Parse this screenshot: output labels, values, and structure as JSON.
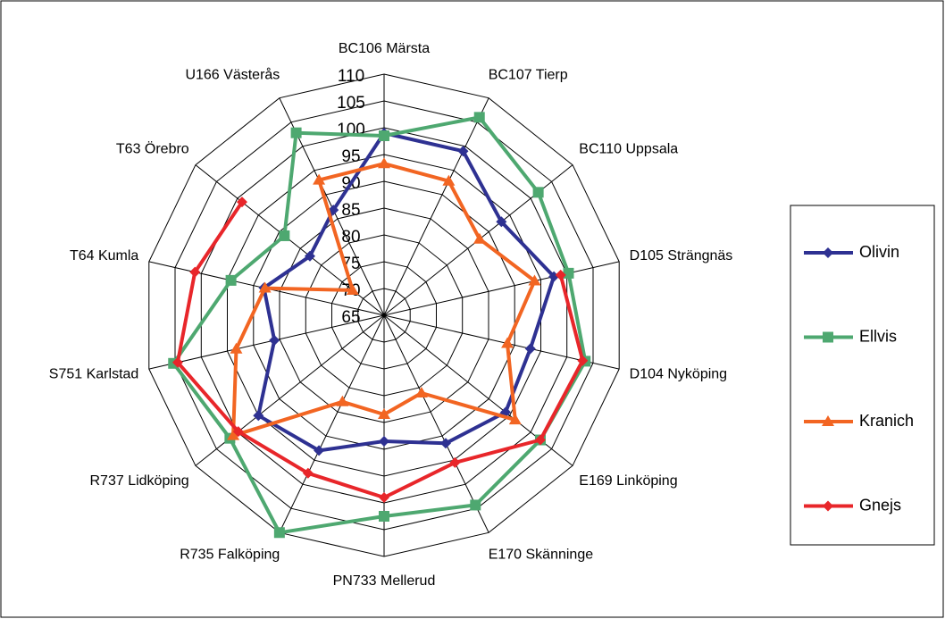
{
  "chart_data": {
    "type": "radar",
    "categories": [
      "BC106 Märsta",
      "BC107 Tierp",
      "BC110 Uppsala",
      "D105 Strängnäs",
      "D104 Nyköping",
      "E169 Linköping",
      "E170 Skänninge",
      "PN733 Mellerud",
      "R735 Falköping",
      "R737 Lidköping",
      "S751 Karlstad",
      "T64 Kumla",
      "T63 Örebro",
      "U166 Västerås"
    ],
    "ylim": [
      65,
      110
    ],
    "yticks": [
      65,
      70,
      75,
      80,
      85,
      90,
      95,
      100,
      105,
      110
    ],
    "grid": true,
    "legend": "right",
    "series": [
      {
        "name": "Olivin",
        "color": "#2e3192",
        "marker": "diamond",
        "values": [
          99,
          99,
          93,
          97.5,
          93,
          94,
          91.5,
          88.5,
          93,
          95,
          86,
          88,
          82.7,
          86.8
        ]
      },
      {
        "name": "Ellvis",
        "color": "#4ea870",
        "marker": "square",
        "values": [
          98.5,
          106,
          101.8,
          100.3,
          103.5,
          102.3,
          104.3,
          102.5,
          110,
          101.8,
          105.3,
          94.3,
          88.8,
          102.8
        ]
      },
      {
        "name": "Kranich",
        "color": "#f26522",
        "marker": "triangle",
        "values": [
          93.3,
          92.8,
          87.8,
          93.8,
          88.6,
          96.3,
          81.1,
          83.5,
          82.9,
          101,
          93.3,
          87.8,
          72.5,
          93
        ]
      },
      {
        "name": "Gnejs",
        "color": "#e8262a",
        "marker": "diamond",
        "values": [
          null,
          null,
          null,
          98.8,
          103,
          102.3,
          95.5,
          99,
          97.7,
          99.8,
          104.5,
          101.2,
          98.9,
          null
        ]
      }
    ]
  }
}
